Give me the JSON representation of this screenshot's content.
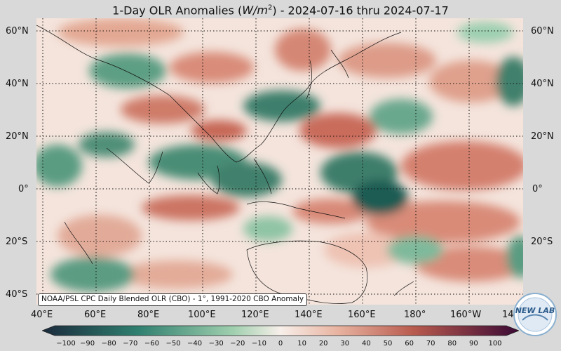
{
  "title": {
    "prefix": "1-Day OLR Anomalies (",
    "unit_base": "W/m",
    "unit_exp": "2",
    "suffix": ") - 2024-07-16 thru 2024-07-17"
  },
  "map": {
    "lat_labels_left": [
      "60°N",
      "40°N",
      "20°N",
      "0°",
      "20°S",
      "40°S"
    ],
    "lat_labels_right": [
      "60°N",
      "40°N",
      "20°N",
      "0°",
      "20°S"
    ],
    "lon_labels": [
      "40°E",
      "60°E",
      "80°E",
      "100°E",
      "120°E",
      "140°E",
      "160°E",
      "180°",
      "160°W",
      "14"
    ],
    "attribution": "NOAA/PSL CPC Daily Blended OLR (CBO) - 1°, 1991-2020 CBO Anomaly"
  },
  "colorbar": {
    "ticks": [
      "−100",
      "−90",
      "−80",
      "−70",
      "−60",
      "−50",
      "−40",
      "−30",
      "−20",
      "−10",
      "0",
      "10",
      "20",
      "30",
      "40",
      "50",
      "60",
      "70",
      "80",
      "90",
      "100"
    ],
    "colors": {
      "deep_negative": "#1b2a3c",
      "negative": "#2f7f6f",
      "light_negative": "#9fcfae",
      "zero": "#f7efea",
      "light_positive": "#e8b3a0",
      "positive": "#b85a4e",
      "deep_positive": "#3b0a35"
    }
  },
  "logo": {
    "text": "NEW LAB"
  }
}
